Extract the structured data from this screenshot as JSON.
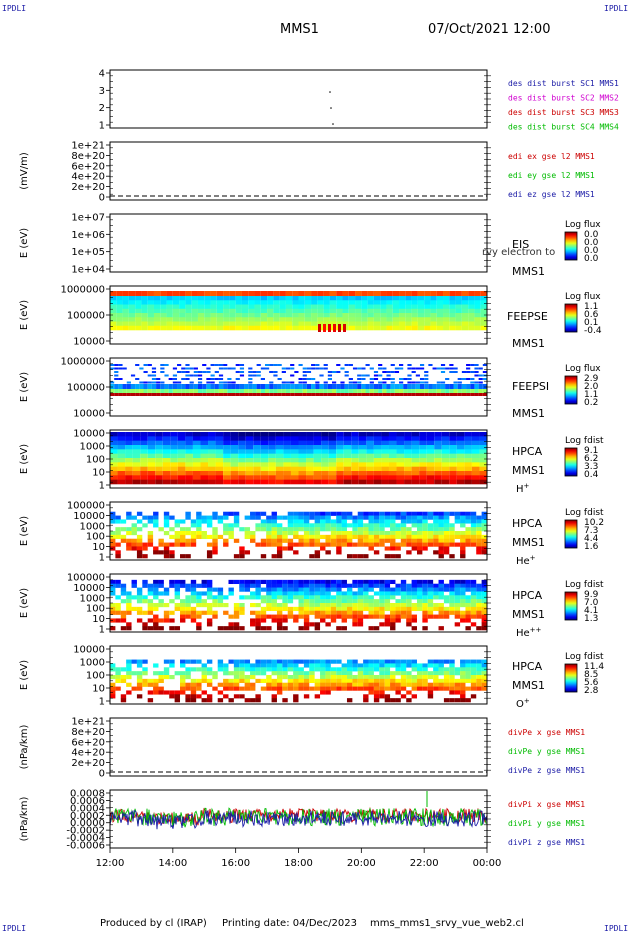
{
  "corners": {
    "tl": "IPDLI",
    "tr": "IPDLI",
    "bl": "IPDLI",
    "br": "IPDLI"
  },
  "header": {
    "spacecraft": "MMS1",
    "datetime": "07/Oct/2021 12:00"
  },
  "footer": {
    "produced": "Produced by cl (IRAP)",
    "printing": "Printing date: 04/Dec/2023",
    "file": "mms_mms1_srvy_vue_web2.cl"
  },
  "colors": {
    "blue": "#1a1aa6",
    "magenta": "#d000d0",
    "red": "#cc0000",
    "green": "#00bb00",
    "black": "#000000"
  },
  "chart_data": {
    "type": "multi-panel",
    "x_ticks": [
      "12:00",
      "14:00",
      "16:00",
      "18:00",
      "20:00",
      "22:00",
      "00:00"
    ],
    "panels": [
      {
        "type": "scatter",
        "ylabel": "",
        "yticks": [
          "4",
          "3",
          "2",
          "1"
        ],
        "legend": [
          "des dist burst SC1 MMS1",
          "des dist burst SC2 MMS2",
          "des dist burst SC3 MMS3",
          "des dist burst SC4 MMS4"
        ]
      },
      {
        "type": "line",
        "ylabel": "(mV/m)",
        "yticks": [
          "1e+21",
          "8e+20",
          "6e+20",
          "4e+20",
          "2e+20",
          "0"
        ],
        "legend": [
          "edi ex gse l2 MMS1",
          "edi ey gse l2 MMS1",
          "edi ez gse l2 MMS1"
        ]
      },
      {
        "type": "heatmap",
        "ylabel": "E (eV)",
        "yticks": [
          "1e+07",
          "1e+06",
          "1e+05",
          "1e+04"
        ],
        "name": "EIS",
        "sub": "MMS1",
        "overlay": "rvy electron to",
        "cb_title": "Log flux",
        "cb_ticks": [
          "0.0",
          "0.0",
          "0.0",
          "0.0"
        ]
      },
      {
        "type": "heatmap",
        "ylabel": "E (eV)",
        "yticks": [
          "1000000",
          "100000",
          "10000"
        ],
        "name": "FEEPSE",
        "sub": "MMS1",
        "cb_title": "Log flux",
        "cb_ticks": [
          "1.1",
          "0.6",
          "0.1",
          "-0.4"
        ]
      },
      {
        "type": "heatmap",
        "ylabel": "E (eV)",
        "yticks": [
          "1000000",
          "100000",
          "10000"
        ],
        "name": "FEEPSI",
        "sub": "MMS1",
        "cb_title": "Log flux",
        "cb_ticks": [
          "2.9",
          "2.0",
          "1.1",
          "0.2"
        ]
      },
      {
        "type": "heatmap",
        "ylabel": "E (eV)",
        "yticks": [
          "10000",
          "1000",
          "100",
          "10",
          "1"
        ],
        "name": "HPCA",
        "sub": "MMS1",
        "species": "H+",
        "cb_title": "Log fdist",
        "cb_ticks": [
          "9.1",
          "6.2",
          "3.3",
          "0.4"
        ]
      },
      {
        "type": "heatmap",
        "ylabel": "E (eV)",
        "yticks": [
          "100000",
          "10000",
          "1000",
          "100",
          "10",
          "1"
        ],
        "name": "HPCA",
        "sub": "MMS1",
        "species": "He+",
        "cb_title": "Log fdist",
        "cb_ticks": [
          "10.2",
          "7.3",
          "4.4",
          "1.6"
        ]
      },
      {
        "type": "heatmap",
        "ylabel": "E (eV)",
        "yticks": [
          "100000",
          "10000",
          "1000",
          "100",
          "10",
          "1"
        ],
        "name": "HPCA",
        "sub": "MMS1",
        "species": "He++",
        "cb_title": "Log fdist",
        "cb_ticks": [
          "9.9",
          "7.0",
          "4.1",
          "1.3"
        ]
      },
      {
        "type": "heatmap",
        "ylabel": "E (eV)",
        "yticks": [
          "10000",
          "1000",
          "100",
          "10",
          "1"
        ],
        "name": "HPCA",
        "sub": "MMS1",
        "species": "O+",
        "cb_title": "Log fdist",
        "cb_ticks": [
          "11.4",
          "8.5",
          "5.6",
          "2.8"
        ]
      },
      {
        "type": "line",
        "ylabel": "(nPa/km)",
        "yticks": [
          "1e+21",
          "8e+20",
          "6e+20",
          "4e+20",
          "2e+20",
          "0"
        ],
        "legend": [
          "divPe x gse MMS1",
          "divPe y gse MMS1",
          "divPe z gse MMS1"
        ]
      },
      {
        "type": "line",
        "ylabel": "(nPa/km)",
        "yticks": [
          "0.0008",
          "0.0006",
          "0.0004",
          "0.0002",
          "0.0000",
          "-0.0002",
          "-0.0004",
          "-0.0006"
        ],
        "legend": [
          "divPi x gse MMS1",
          "divPi y gse MMS1",
          "divPi z gse MMS1"
        ]
      }
    ]
  }
}
